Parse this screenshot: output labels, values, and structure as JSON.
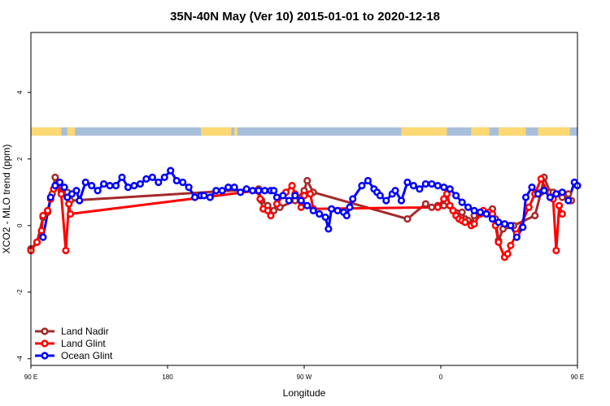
{
  "chart_data": {
    "type": "line",
    "title": "35N-40N May (Ver 10)   2015-01-01 to 2020-12-18",
    "xlabel": "Longitude",
    "ylabel": "XCO2 - MLO trend (ppm)",
    "xlim": [
      90,
      450
    ],
    "ylim": [
      -4.2,
      5.8
    ],
    "x_ticks": [
      {
        "value": 90,
        "label": "90 E"
      },
      {
        "value": 180,
        "label": "180"
      },
      {
        "value": 270,
        "label": "90 W"
      },
      {
        "value": 360,
        "label": "0"
      },
      {
        "value": 450,
        "label": "90 E"
      },
      {
        "value": 540,
        "label": "180"
      }
    ],
    "y_ticks": [
      {
        "value": -4,
        "label": "-4"
      },
      {
        "value": -2,
        "label": "-2"
      },
      {
        "value": 0,
        "label": "0"
      },
      {
        "value": 2,
        "label": "2"
      },
      {
        "value": 4,
        "label": "4"
      }
    ],
    "land_ocean_strip": {
      "y_range": [
        2.7,
        2.95
      ],
      "ocean_color": "#a8bfdc",
      "land_color": "#fcd974",
      "land_segments": [
        [
          90,
          110
        ],
        [
          114,
          119
        ],
        [
          202,
          222
        ],
        [
          224,
          226
        ],
        [
          334,
          356
        ],
        [
          356,
          364
        ],
        [
          380,
          392
        ],
        [
          398,
          416
        ],
        [
          424,
          445
        ],
        [
          456,
          475
        ]
      ]
    },
    "legend_position": "bottom-left",
    "series": [
      {
        "name": "Land Nadir",
        "color": "#a52a2a",
        "points": [
          [
            90,
            -0.7
          ],
          [
            94,
            -0.5
          ],
          [
            98,
            0.25
          ],
          [
            101,
            0.4
          ],
          [
            104,
            0.95
          ],
          [
            106,
            1.45
          ],
          [
            110,
            1.0
          ],
          [
            112,
            0.95
          ],
          [
            114,
            1.0
          ],
          [
            116,
            0.75
          ],
          [
            240,
            1.1
          ],
          [
            242,
            0.75
          ],
          [
            246,
            0.6
          ],
          [
            250,
            0.45
          ],
          [
            254,
            0.55
          ],
          [
            264,
            0.75
          ],
          [
            270,
            1.05
          ],
          [
            272,
            1.35
          ],
          [
            276,
            1.0
          ],
          [
            338,
            0.2
          ],
          [
            350,
            0.65
          ],
          [
            354,
            0.55
          ],
          [
            358,
            0.6
          ],
          [
            362,
            0.6
          ],
          [
            374,
            0.4
          ],
          [
            376,
            0.2
          ],
          [
            378,
            0.15
          ],
          [
            380,
            0.05
          ],
          [
            382,
            0.3
          ],
          [
            388,
            0.4
          ],
          [
            394,
            0.5
          ],
          [
            396,
            0.2
          ],
          [
            398,
            -0.45
          ],
          [
            401,
            -0.1
          ],
          [
            404,
            0.0
          ],
          [
            408,
            0.0
          ],
          [
            422,
            0.3
          ],
          [
            426,
            1.0
          ],
          [
            428,
            1.45
          ],
          [
            432,
            1.0
          ],
          [
            434,
            1.0
          ],
          [
            438,
            0.95
          ],
          [
            440,
            0.85
          ],
          [
            444,
            0.95
          ],
          [
            446,
            0.75
          ]
        ]
      },
      {
        "name": "Land Glint",
        "color": "#ff0000",
        "points": [
          [
            90,
            -0.75
          ],
          [
            94,
            -0.5
          ],
          [
            97,
            -0.15
          ],
          [
            98,
            0.3
          ],
          [
            101,
            0.45
          ],
          [
            103,
            0.8
          ],
          [
            105,
            1.1
          ],
          [
            107,
            1.2
          ],
          [
            110,
            0.95
          ],
          [
            113,
            -0.75
          ],
          [
            115,
            0.65
          ],
          [
            116,
            0.35
          ],
          [
            239,
            1.05
          ],
          [
            241,
            0.8
          ],
          [
            243,
            0.5
          ],
          [
            246,
            0.45
          ],
          [
            248,
            0.3
          ],
          [
            252,
            0.65
          ],
          [
            258,
            1.0
          ],
          [
            262,
            1.2
          ],
          [
            264,
            0.95
          ],
          [
            268,
            0.55
          ],
          [
            270,
            0.9
          ],
          [
            274,
            0.95
          ],
          [
            276,
            0.5
          ],
          [
            358,
            0.55
          ],
          [
            362,
            0.8
          ],
          [
            364,
            0.95
          ],
          [
            366,
            0.6
          ],
          [
            368,
            0.45
          ],
          [
            370,
            0.3
          ],
          [
            372,
            0.2
          ],
          [
            374,
            0.15
          ],
          [
            376,
            0.1
          ],
          [
            380,
            0.0
          ],
          [
            382,
            0.05
          ],
          [
            386,
            0.35
          ],
          [
            388,
            0.45
          ],
          [
            390,
            0.35
          ],
          [
            392,
            0.4
          ],
          [
            394,
            0.35
          ],
          [
            396,
            0.0
          ],
          [
            398,
            -0.5
          ],
          [
            402,
            -0.95
          ],
          [
            404,
            -0.85
          ],
          [
            406,
            -0.6
          ],
          [
            410,
            -0.25
          ],
          [
            418,
            0.55
          ],
          [
            422,
            0.95
          ],
          [
            426,
            1.4
          ],
          [
            432,
            0.85
          ],
          [
            434,
            0.8
          ],
          [
            436,
            -0.75
          ],
          [
            438,
            0.6
          ],
          [
            440,
            0.35
          ]
        ]
      },
      {
        "name": "Ocean Glint",
        "color": "#0000ff",
        "points": [
          [
            98,
            -0.35
          ],
          [
            103,
            0.85
          ],
          [
            106,
            1.2
          ],
          [
            109,
            1.3
          ],
          [
            112,
            1.15
          ],
          [
            114,
            0.85
          ],
          [
            117,
            0.95
          ],
          [
            120,
            1.05
          ],
          [
            122,
            0.75
          ],
          [
            126,
            1.3
          ],
          [
            130,
            1.2
          ],
          [
            134,
            1.05
          ],
          [
            138,
            1.25
          ],
          [
            142,
            1.2
          ],
          [
            146,
            1.2
          ],
          [
            150,
            1.45
          ],
          [
            154,
            1.15
          ],
          [
            158,
            1.2
          ],
          [
            162,
            1.25
          ],
          [
            166,
            1.4
          ],
          [
            170,
            1.45
          ],
          [
            174,
            1.3
          ],
          [
            178,
            1.45
          ],
          [
            182,
            1.65
          ],
          [
            186,
            1.35
          ],
          [
            190,
            1.3
          ],
          [
            194,
            1.15
          ],
          [
            198,
            0.85
          ],
          [
            202,
            0.9
          ],
          [
            204,
            0.9
          ],
          [
            208,
            0.85
          ],
          [
            212,
            1.05
          ],
          [
            216,
            1.05
          ],
          [
            220,
            1.15
          ],
          [
            224,
            1.15
          ],
          [
            228,
            1.0
          ],
          [
            232,
            1.1
          ],
          [
            236,
            1.05
          ],
          [
            240,
            1.05
          ],
          [
            244,
            1.05
          ],
          [
            248,
            1.05
          ],
          [
            250,
            1.05
          ],
          [
            252,
            0.85
          ],
          [
            256,
            0.9
          ],
          [
            260,
            0.75
          ],
          [
            264,
            0.9
          ],
          [
            268,
            0.75
          ],
          [
            272,
            0.6
          ],
          [
            276,
            0.45
          ],
          [
            280,
            0.35
          ],
          [
            284,
            0.25
          ],
          [
            286,
            -0.1
          ],
          [
            288,
            0.5
          ],
          [
            292,
            0.45
          ],
          [
            296,
            0.4
          ],
          [
            298,
            0.3
          ],
          [
            300,
            0.55
          ],
          [
            302,
            0.8
          ],
          [
            308,
            1.2
          ],
          [
            312,
            1.35
          ],
          [
            316,
            1.1
          ],
          [
            318,
            1.0
          ],
          [
            320,
            0.9
          ],
          [
            324,
            0.75
          ],
          [
            328,
            0.95
          ],
          [
            330,
            1.05
          ],
          [
            334,
            0.75
          ],
          [
            338,
            1.3
          ],
          [
            342,
            1.2
          ],
          [
            346,
            1.1
          ],
          [
            350,
            1.25
          ],
          [
            354,
            1.25
          ],
          [
            358,
            1.2
          ],
          [
            362,
            1.15
          ],
          [
            366,
            1.1
          ],
          [
            370,
            0.9
          ],
          [
            374,
            0.7
          ],
          [
            378,
            0.55
          ],
          [
            382,
            0.45
          ],
          [
            386,
            0.4
          ],
          [
            390,
            0.35
          ],
          [
            394,
            0.2
          ],
          [
            398,
            0.1
          ],
          [
            402,
            0.05
          ],
          [
            406,
            0.0
          ],
          [
            410,
            -0.35
          ],
          [
            414,
            -0.05
          ],
          [
            416,
            0.85
          ],
          [
            420,
            1.15
          ],
          [
            424,
            0.95
          ],
          [
            428,
            1.05
          ],
          [
            432,
            0.85
          ],
          [
            436,
            0.95
          ],
          [
            440,
            1.0
          ],
          [
            444,
            0.75
          ],
          [
            448,
            1.3
          ],
          [
            450,
            1.2
          ]
        ]
      }
    ]
  }
}
